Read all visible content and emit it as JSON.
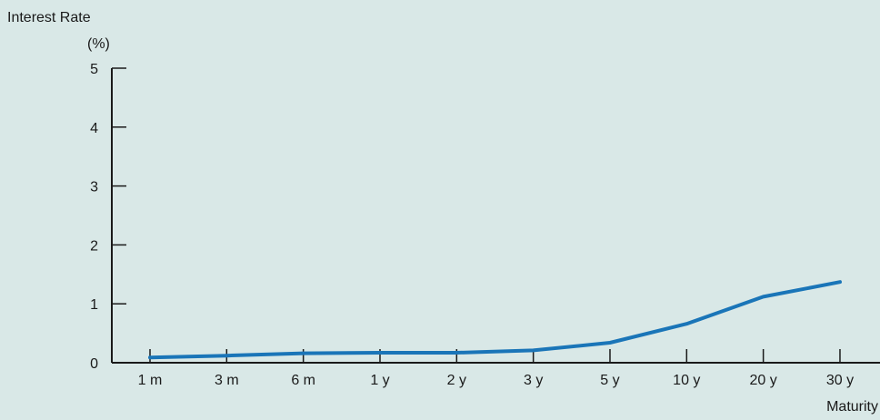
{
  "chart_data": {
    "type": "line",
    "ylabel_line1": "Interest Rate",
    "ylabel_line2": "(%)",
    "xlabel": "Maturity",
    "categories": [
      "1 m",
      "3 m",
      "6 m",
      "1 y",
      "2 y",
      "3 y",
      "5 y",
      "10 y",
      "20 y",
      "30 y"
    ],
    "series": [
      {
        "values": [
          0.09,
          0.12,
          0.16,
          0.17,
          0.17,
          0.21,
          0.34,
          0.66,
          1.12,
          1.37
        ],
        "color": "#1a75b8"
      }
    ],
    "ylim": [
      0,
      5
    ],
    "yticks": [
      "0",
      "1",
      "2",
      "3",
      "4",
      "5"
    ],
    "grid": false,
    "legend": "none"
  }
}
